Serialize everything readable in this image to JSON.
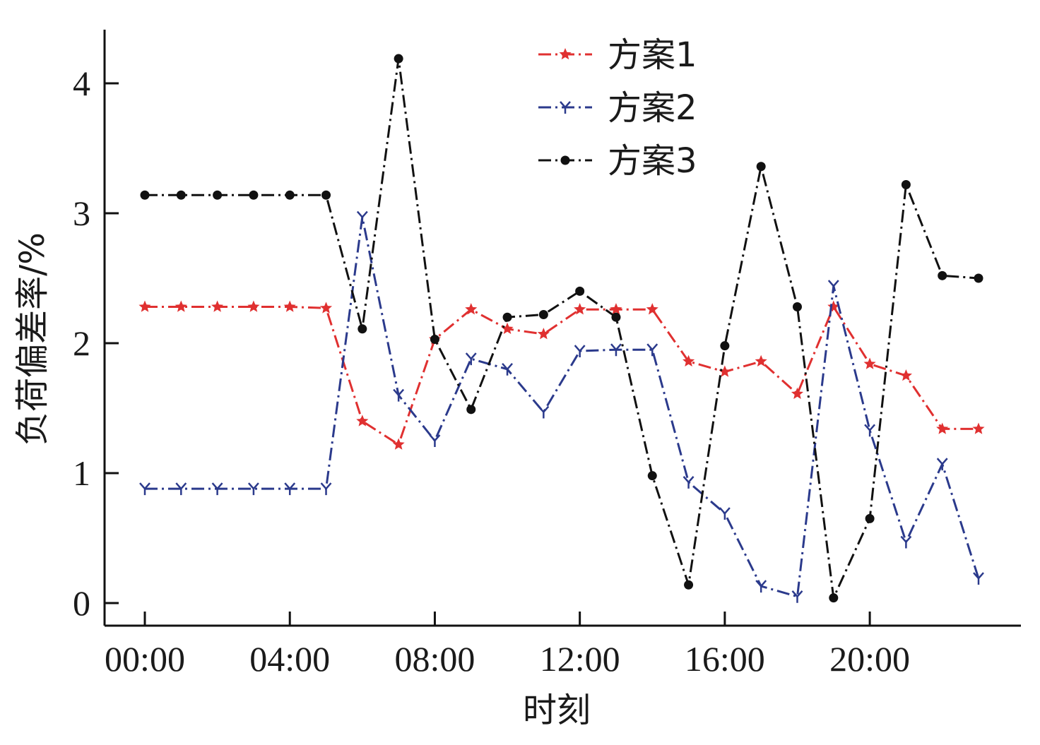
{
  "chart_data": {
    "type": "line",
    "title": "",
    "xlabel": "时刻",
    "ylabel": "负荷偏差率/%",
    "x_tick_labels": [
      "00:00",
      "04:00",
      "08:00",
      "12:00",
      "16:00",
      "20:00"
    ],
    "y_tick_labels": [
      "0",
      "1",
      "2",
      "3",
      "4"
    ],
    "x_hours": [
      0,
      1,
      2,
      3,
      4,
      5,
      6,
      7,
      8,
      9,
      10,
      11,
      12,
      13,
      14,
      15,
      16,
      17,
      18,
      19,
      20,
      21,
      22,
      23
    ],
    "ylim": [
      0,
      4.2
    ],
    "grid": false,
    "legend_position": "top-center",
    "series": [
      {
        "name": "方案1",
        "color": "#e03030",
        "marker": "star",
        "values": [
          2.28,
          2.28,
          2.28,
          2.28,
          2.28,
          2.27,
          1.4,
          1.22,
          2.03,
          2.26,
          2.11,
          2.07,
          2.26,
          2.26,
          2.26,
          1.86,
          1.78,
          1.86,
          1.61,
          2.28,
          1.84,
          1.75,
          1.34,
          1.34
        ]
      },
      {
        "name": "方案2",
        "color": "#2b3a8c",
        "marker": "tri-down",
        "values": [
          0.88,
          0.88,
          0.88,
          0.88,
          0.88,
          0.88,
          2.97,
          1.6,
          1.25,
          1.88,
          1.8,
          1.47,
          1.94,
          1.95,
          1.95,
          0.93,
          0.69,
          0.13,
          0.05,
          2.44,
          1.33,
          0.47,
          1.07,
          0.19
        ]
      },
      {
        "name": "方案3",
        "color": "#111111",
        "marker": "circle",
        "values": [
          3.14,
          3.14,
          3.14,
          3.14,
          3.14,
          3.14,
          2.11,
          4.19,
          2.03,
          1.49,
          2.2,
          2.22,
          2.4,
          2.2,
          0.98,
          0.14,
          1.98,
          3.36,
          2.28,
          0.04,
          0.65,
          3.22,
          2.52,
          2.5
        ]
      }
    ]
  }
}
